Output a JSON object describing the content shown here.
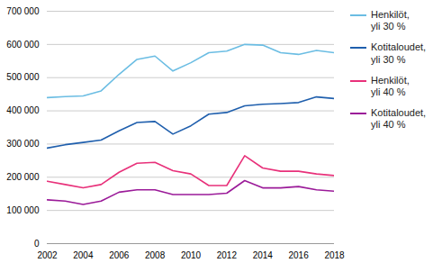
{
  "chart_data": {
    "type": "line",
    "x": [
      2002,
      2003,
      2004,
      2005,
      2006,
      2007,
      2008,
      2009,
      2010,
      2011,
      2012,
      2013,
      2014,
      2015,
      2016,
      2017,
      2018
    ],
    "series": [
      {
        "name": "Henkilöt,\nyli 30 %",
        "color": "#6BBDE3",
        "values": [
          440000,
          443000,
          445000,
          460000,
          510000,
          555000,
          565000,
          520000,
          545000,
          575000,
          580000,
          600000,
          598000,
          575000,
          570000,
          582000,
          575000
        ]
      },
      {
        "name": "Kotitaloudet,\nyli 30 %",
        "color": "#1F5FAD",
        "values": [
          288000,
          298000,
          305000,
          312000,
          340000,
          365000,
          368000,
          330000,
          355000,
          390000,
          395000,
          415000,
          420000,
          422000,
          425000,
          442000,
          437000
        ]
      },
      {
        "name": "Henkilöt,\nyli 40 %",
        "color": "#E8317A",
        "values": [
          188000,
          178000,
          168000,
          178000,
          215000,
          242000,
          245000,
          220000,
          210000,
          175000,
          175000,
          265000,
          228000,
          218000,
          218000,
          210000,
          205000
        ]
      },
      {
        "name": "Kotitaloudet,\nyli 40 %",
        "color": "#9B1B99",
        "values": [
          132000,
          128000,
          118000,
          128000,
          155000,
          162000,
          162000,
          148000,
          148000,
          148000,
          152000,
          190000,
          168000,
          168000,
          172000,
          162000,
          158000
        ]
      }
    ],
    "xlim": [
      2002,
      2018
    ],
    "xticks": [
      2002,
      2004,
      2006,
      2008,
      2010,
      2012,
      2014,
      2016,
      2018
    ],
    "ylim": [
      0,
      700000
    ],
    "yticks": [
      0,
      {
        "value": 100000,
        "label": "100 000"
      },
      {
        "value": 200000,
        "label": "200 000"
      },
      {
        "value": 300000,
        "label": "300 000"
      },
      {
        "value": 400000,
        "label": "400 000"
      },
      {
        "value": 500000,
        "label": "500 000"
      },
      {
        "value": 600000,
        "label": "600 000"
      },
      {
        "value": 700000,
        "label": "700 000"
      }
    ],
    "grid": true,
    "legend": "right"
  }
}
